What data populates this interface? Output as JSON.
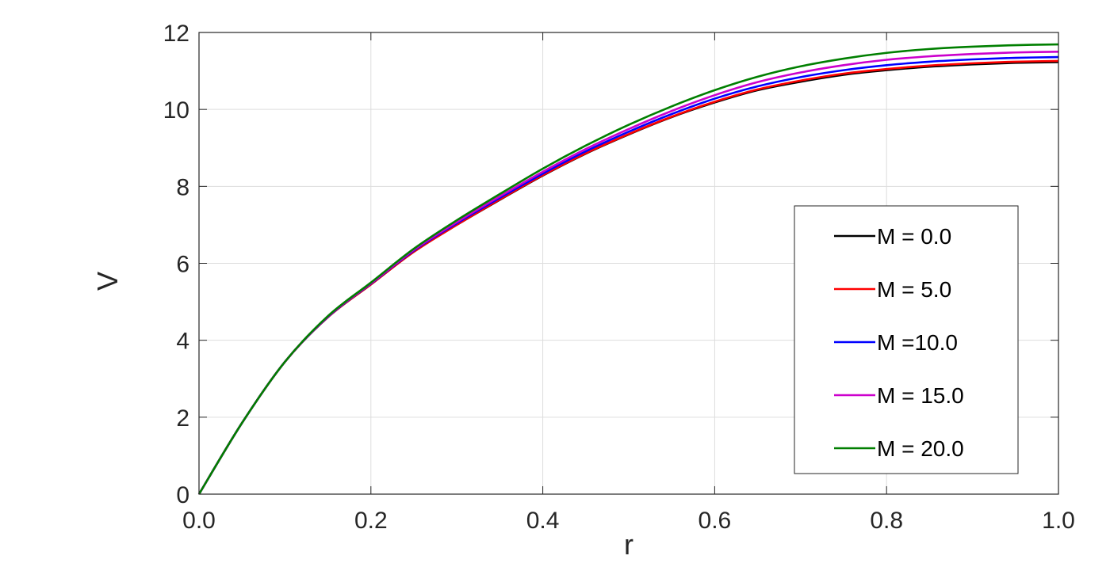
{
  "chart_data": {
    "type": "line",
    "xlabel": "r",
    "ylabel": "V",
    "xlim": [
      0,
      1
    ],
    "ylim": [
      0,
      12
    ],
    "grid": true,
    "legend_position": "right",
    "xticks": [
      0,
      0.2,
      0.4,
      0.6,
      0.8,
      1.0
    ],
    "xtick_labels": [
      "0.0",
      "0.2",
      "0.4",
      "0.6",
      "0.8",
      "1.0"
    ],
    "yticks": [
      0,
      2,
      4,
      6,
      8,
      10,
      12
    ],
    "ytick_labels": [
      "0",
      "2",
      "4",
      "6",
      "8",
      "10",
      "12"
    ],
    "x": [
      0,
      0.05,
      0.1,
      0.15,
      0.2,
      0.25,
      0.3,
      0.35,
      0.4,
      0.45,
      0.5,
      0.55,
      0.6,
      0.65,
      0.7,
      0.75,
      0.8,
      0.85,
      0.9,
      0.95,
      1.0
    ],
    "series": [
      {
        "name": "M = 0.0",
        "color": "#000000",
        "values": [
          0,
          1.85,
          3.44,
          4.6,
          5.45,
          6.3,
          7.0,
          7.65,
          8.28,
          8.85,
          9.35,
          9.8,
          10.18,
          10.5,
          10.72,
          10.9,
          11.02,
          11.11,
          11.17,
          11.21,
          11.23
        ]
      },
      {
        "name": "M = 5.0",
        "color": "#ff0000",
        "values": [
          0,
          1.85,
          3.44,
          4.6,
          5.45,
          6.3,
          7.0,
          7.66,
          8.29,
          8.86,
          9.36,
          9.81,
          10.2,
          10.52,
          10.75,
          10.93,
          11.05,
          11.14,
          11.2,
          11.24,
          11.26
        ]
      },
      {
        "name": "M =10.0",
        "color": "#0000ff",
        "values": [
          0,
          1.85,
          3.44,
          4.61,
          5.47,
          6.33,
          7.04,
          7.7,
          8.33,
          8.91,
          9.42,
          9.88,
          10.28,
          10.6,
          10.84,
          11.02,
          11.15,
          11.24,
          11.3,
          11.34,
          11.36
        ]
      },
      {
        "name": "M = 15.0",
        "color": "#cc00cc",
        "values": [
          0,
          1.85,
          3.44,
          4.62,
          5.48,
          6.35,
          7.07,
          7.74,
          8.38,
          8.97,
          9.49,
          9.96,
          10.37,
          10.71,
          10.96,
          11.15,
          11.29,
          11.38,
          11.44,
          11.48,
          11.5
        ]
      },
      {
        "name": "M = 20.0",
        "color": "#007f00",
        "values": [
          0,
          1.85,
          3.44,
          4.63,
          5.5,
          6.38,
          7.12,
          7.8,
          8.46,
          9.06,
          9.6,
          10.08,
          10.5,
          10.85,
          11.12,
          11.32,
          11.47,
          11.57,
          11.63,
          11.67,
          11.69
        ]
      }
    ]
  }
}
